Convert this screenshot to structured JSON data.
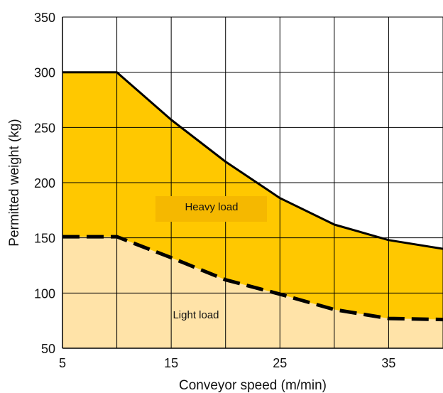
{
  "chart_data": {
    "type": "area",
    "xlabel": "Conveyor speed (m/min)",
    "ylabel": "Permitted weight (kg)",
    "xlim": [
      5,
      40
    ],
    "ylim": [
      50,
      350
    ],
    "xticks": [
      5,
      15,
      25,
      35
    ],
    "yticks": [
      50,
      100,
      150,
      200,
      250,
      300,
      350
    ],
    "x_gridlines": [
      5,
      10,
      15,
      20,
      25,
      30,
      35,
      40
    ],
    "y_gridlines": [
      50,
      100,
      150,
      200,
      250,
      300,
      350
    ],
    "grid": true,
    "series": [
      {
        "name": "Heavy load",
        "line_style": "solid",
        "x": [
          5,
          10,
          15,
          20,
          25,
          30,
          35,
          40
        ],
        "values": [
          300,
          300,
          257,
          219,
          186,
          162,
          148,
          140
        ]
      },
      {
        "name": "Light load",
        "line_style": "dashed",
        "x": [
          5,
          10,
          15,
          20,
          25,
          30,
          35,
          40
        ],
        "values": [
          151,
          151,
          132,
          112,
          99,
          85,
          77,
          76
        ]
      }
    ],
    "colors": {
      "heavy_fill": "#FFC800",
      "light_fill": "#FFE3A8",
      "label_box": "#F5B800",
      "line": "#000000",
      "grid": "#000000"
    }
  }
}
